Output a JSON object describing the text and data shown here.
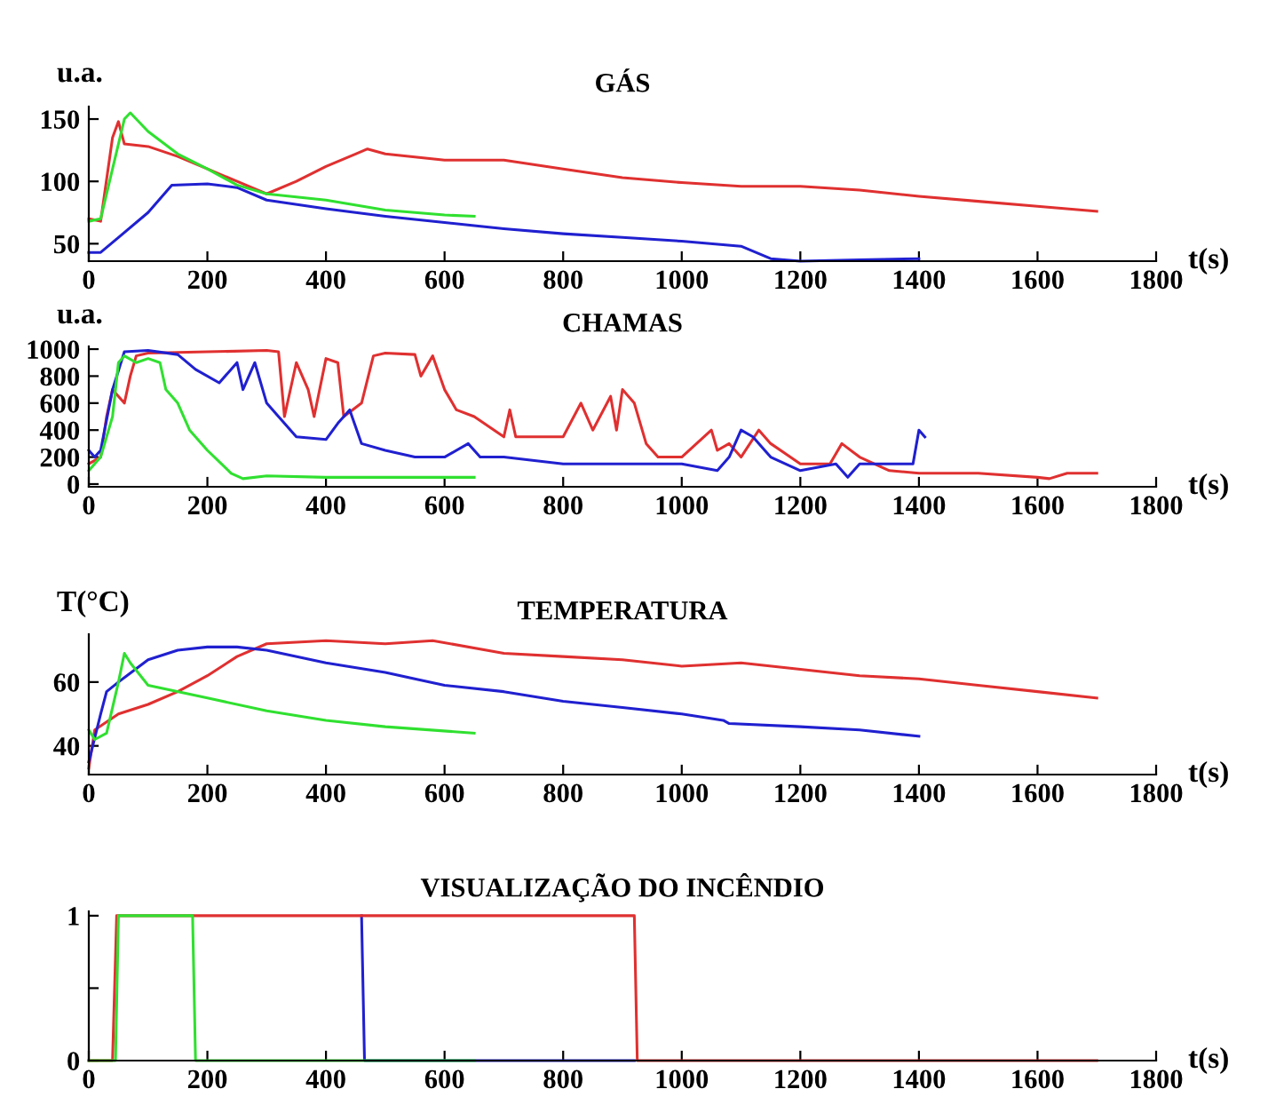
{
  "chart_data": [
    {
      "type": "line",
      "title": "GÁS",
      "xlabel": "t(s)",
      "ylabel": "u.a.",
      "xlim": [
        0,
        1800
      ],
      "xticks": [
        0,
        200,
        400,
        600,
        800,
        1000,
        1200,
        1400,
        1600,
        1800
      ],
      "ylim": [
        36,
        160
      ],
      "yticks": [
        50,
        100,
        150
      ],
      "grid": false,
      "legend": false,
      "series": [
        {
          "color": "#e03030",
          "x": [
            0,
            20,
            40,
            50,
            60,
            100,
            150,
            200,
            250,
            300,
            350,
            400,
            450,
            470,
            500,
            600,
            700,
            800,
            900,
            1000,
            1100,
            1200,
            1300,
            1400,
            1500,
            1600,
            1700
          ],
          "values": [
            70,
            68,
            135,
            148,
            130,
            128,
            120,
            110,
            100,
            90,
            100,
            112,
            122,
            126,
            122,
            117,
            117,
            110,
            103,
            99,
            96,
            96,
            93,
            88,
            84,
            80,
            76
          ]
        },
        {
          "color": "#2020d0",
          "x": [
            0,
            20,
            50,
            100,
            140,
            200,
            250,
            300,
            400,
            500,
            600,
            700,
            800,
            900,
            1000,
            1100,
            1150,
            1200,
            1300,
            1400
          ],
          "values": [
            43,
            43,
            55,
            75,
            97,
            98,
            95,
            85,
            78,
            72,
            67,
            62,
            58,
            55,
            52,
            48,
            38,
            36,
            37,
            38
          ]
        },
        {
          "color": "#30e030",
          "x": [
            0,
            20,
            40,
            60,
            70,
            100,
            150,
            200,
            250,
            300,
            400,
            500,
            600,
            650
          ],
          "values": [
            68,
            70,
            110,
            150,
            155,
            140,
            122,
            110,
            97,
            90,
            85,
            77,
            73,
            72
          ]
        }
      ]
    },
    {
      "type": "line",
      "title": "CHAMAS",
      "xlabel": "t(s)",
      "ylabel": "u.a.",
      "xlim": [
        0,
        1800
      ],
      "xticks": [
        0,
        200,
        400,
        600,
        800,
        1000,
        1200,
        1400,
        1600,
        1800
      ],
      "ylim": [
        -20,
        1020
      ],
      "yticks": [
        0,
        200,
        400,
        600,
        800,
        1000
      ],
      "grid": false,
      "legend": false,
      "series": [
        {
          "color": "#e03030",
          "x": [
            0,
            20,
            30,
            40,
            50,
            60,
            70,
            80,
            100,
            200,
            300,
            320,
            330,
            350,
            370,
            380,
            400,
            420,
            430,
            460,
            480,
            500,
            550,
            560,
            580,
            600,
            620,
            650,
            700,
            710,
            720,
            800,
            830,
            850,
            880,
            890,
            900,
            920,
            940,
            960,
            1000,
            1050,
            1060,
            1080,
            1100,
            1130,
            1150,
            1200,
            1250,
            1270,
            1300,
            1350,
            1400,
            1500,
            1600,
            1620,
            1650,
            1700
          ],
          "values": [
            150,
            200,
            500,
            700,
            650,
            600,
            800,
            950,
            970,
            980,
            990,
            980,
            500,
            900,
            700,
            500,
            930,
            900,
            500,
            600,
            950,
            970,
            960,
            800,
            950,
            700,
            550,
            500,
            350,
            550,
            350,
            350,
            600,
            400,
            650,
            400,
            700,
            600,
            300,
            200,
            200,
            400,
            250,
            300,
            200,
            400,
            300,
            150,
            150,
            300,
            200,
            100,
            80,
            80,
            50,
            40,
            80,
            80
          ]
        },
        {
          "color": "#2020d0",
          "x": [
            0,
            10,
            20,
            40,
            60,
            100,
            150,
            180,
            220,
            250,
            260,
            280,
            300,
            320,
            350,
            400,
            420,
            440,
            460,
            500,
            550,
            600,
            640,
            660,
            700,
            800,
            1000,
            1060,
            1080,
            1100,
            1120,
            1150,
            1200,
            1260,
            1280,
            1300,
            1390,
            1400,
            1410
          ],
          "values": [
            250,
            200,
            250,
            700,
            980,
            990,
            960,
            850,
            750,
            900,
            700,
            900,
            600,
            500,
            350,
            330,
            450,
            550,
            300,
            250,
            200,
            200,
            300,
            200,
            200,
            150,
            150,
            100,
            200,
            400,
            350,
            200,
            100,
            150,
            50,
            150,
            150,
            400,
            350
          ]
        },
        {
          "color": "#30e030",
          "x": [
            0,
            20,
            40,
            50,
            60,
            80,
            100,
            120,
            130,
            150,
            170,
            200,
            240,
            260,
            300,
            400,
            650
          ],
          "values": [
            100,
            200,
            500,
            900,
            950,
            900,
            930,
            900,
            700,
            600,
            400,
            250,
            80,
            40,
            60,
            50,
            50
          ]
        }
      ]
    },
    {
      "type": "line",
      "title": "TEMPERATURA",
      "xlabel": "t(s)",
      "ylabel": "T(°C)",
      "xlim": [
        0,
        1800
      ],
      "xticks": [
        0,
        200,
        400,
        600,
        800,
        1000,
        1200,
        1400,
        1600,
        1800
      ],
      "ylim": [
        31,
        75
      ],
      "yticks": [
        40,
        60
      ],
      "grid": false,
      "legend": false,
      "series": [
        {
          "color": "#e03030",
          "x": [
            0,
            10,
            50,
            100,
            150,
            200,
            250,
            300,
            400,
            500,
            580,
            700,
            800,
            900,
            1000,
            1100,
            1200,
            1300,
            1400,
            1500,
            1600,
            1700
          ],
          "values": [
            33,
            45,
            50,
            53,
            57,
            62,
            68,
            72,
            73,
            72,
            73,
            69,
            68,
            67,
            65,
            66,
            64,
            62,
            61,
            59,
            57,
            55
          ]
        },
        {
          "color": "#2020d0",
          "x": [
            0,
            20,
            30,
            50,
            100,
            150,
            200,
            250,
            300,
            400,
            500,
            600,
            700,
            800,
            900,
            1000,
            1070,
            1080,
            1200,
            1300,
            1400
          ],
          "values": [
            35,
            50,
            57,
            60,
            67,
            70,
            71,
            71,
            70,
            66,
            63,
            59,
            57,
            54,
            52,
            50,
            48,
            47,
            46,
            45,
            43
          ]
        },
        {
          "color": "#30e030",
          "x": [
            0,
            10,
            30,
            50,
            60,
            70,
            100,
            200,
            300,
            400,
            500,
            650
          ],
          "values": [
            45,
            42,
            44,
            60,
            69,
            66,
            59,
            55,
            51,
            48,
            46,
            44
          ]
        }
      ]
    },
    {
      "type": "line",
      "title": "VISUALIZAÇÃO DO INCÊNDIO",
      "xlabel": "t(s)",
      "xlim": [
        0,
        1800
      ],
      "xticks": [
        0,
        200,
        400,
        600,
        800,
        1000,
        1200,
        1400,
        1600,
        1800
      ],
      "ylim": [
        0,
        1.03
      ],
      "yticks": [
        0,
        {
          "value": 0.5,
          "label": null
        },
        1
      ],
      "grid": false,
      "legend": false,
      "series": [
        {
          "color": "#2020d0",
          "x": [
            460,
            465,
            920
          ],
          "values": [
            1,
            0,
            0
          ]
        },
        {
          "color": "#e03030",
          "x": [
            0,
            40,
            47,
            920,
            925,
            1700
          ],
          "values": [
            0,
            0,
            1,
            1,
            0,
            0
          ]
        },
        {
          "color": "#30e030",
          "x": [
            0,
            45,
            50,
            175,
            180,
            650
          ],
          "values": [
            0,
            0,
            1,
            1,
            0,
            0
          ]
        }
      ]
    }
  ]
}
